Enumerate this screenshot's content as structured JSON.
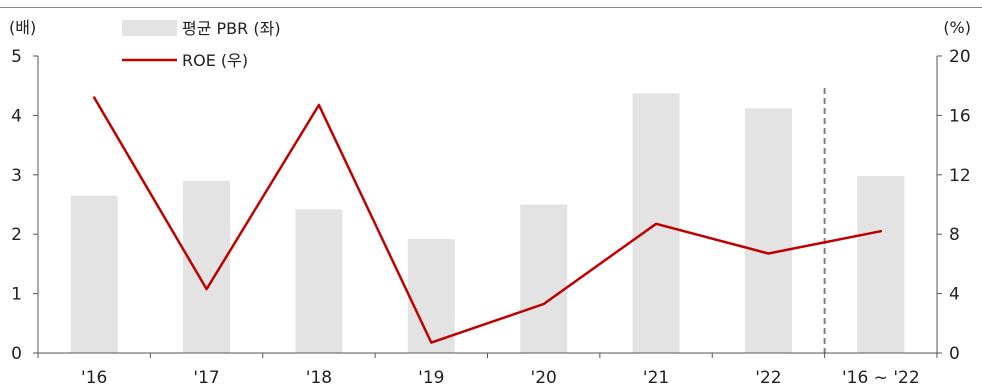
{
  "chart_data": {
    "type": "bar",
    "categories": [
      "'16",
      "'17",
      "'18",
      "'19",
      "'20",
      "'21",
      "'22",
      "'16 ~ '22"
    ],
    "series": [
      {
        "name": "평균 PBR (좌)",
        "type": "bar",
        "axis": "left",
        "values": [
          2.65,
          2.9,
          2.42,
          1.92,
          2.5,
          4.37,
          4.12,
          2.98
        ]
      },
      {
        "name": "ROE (우)",
        "type": "line",
        "axis": "right",
        "values": [
          17.2,
          4.3,
          16.7,
          0.7,
          3.3,
          8.7,
          6.7,
          8.2
        ]
      }
    ],
    "left_axis": {
      "unit": "(배)",
      "ylim": [
        0,
        5
      ],
      "ticks": [
        "0",
        "1",
        "2",
        "3",
        "4",
        "5"
      ]
    },
    "right_axis": {
      "unit": "(%)",
      "ylim": [
        0,
        20
      ],
      "ticks": [
        "0",
        "4",
        "8",
        "12",
        "16",
        "20"
      ]
    },
    "legend_position": "top-left",
    "separator": "dashed line between '22 and '16 ~ '22",
    "grid": false,
    "colors": {
      "bar": "#e3e3e3",
      "line": "#c00000",
      "axis": "#555555",
      "separator": "#808080"
    }
  }
}
